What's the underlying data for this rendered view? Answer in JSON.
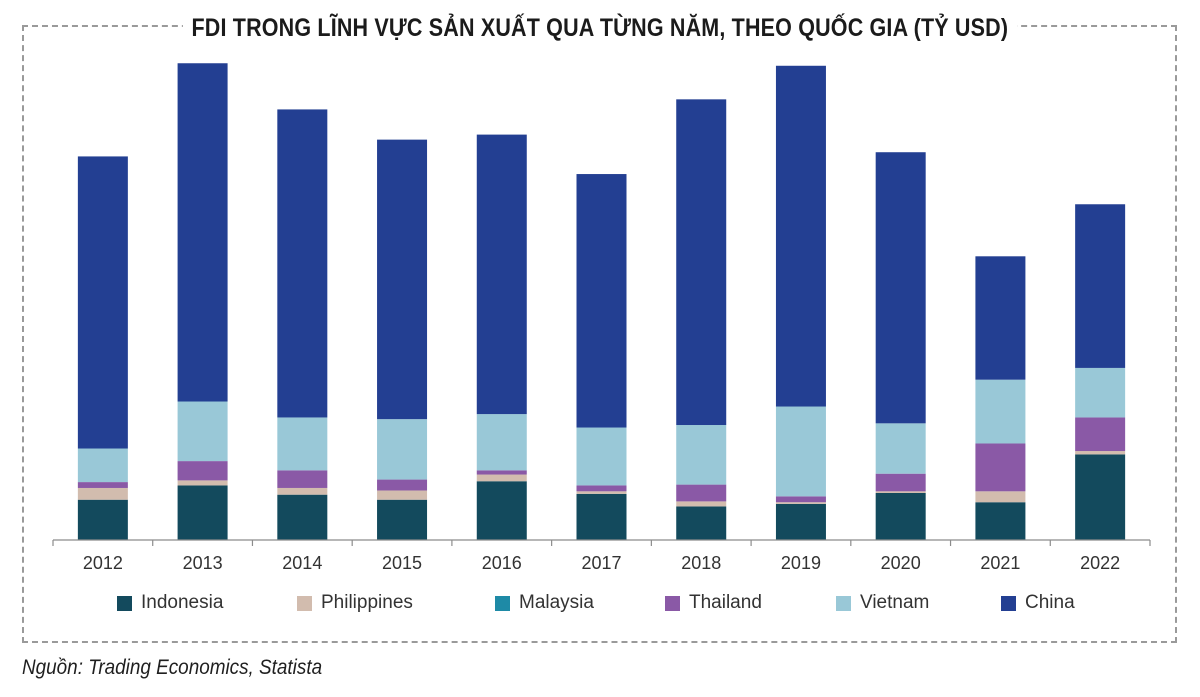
{
  "chart_data": {
    "type": "bar",
    "stacked": true,
    "title": "FDI TRONG LĨNH VỰC SẢN XUẤT QUA TỪNG NĂM, THEO QUỐC GIA (TỶ USD)",
    "xlabel": "",
    "ylabel": "",
    "categories": [
      "2012",
      "2013",
      "2014",
      "2015",
      "2016",
      "2017",
      "2018",
      "2019",
      "2020",
      "2021",
      "2022"
    ],
    "ylim": [
      0,
      61
    ],
    "grid": false,
    "legend_position": "bottom",
    "series": [
      {
        "name": "Indonesia",
        "color": "#134a5d",
        "values": [
          4.8,
          6.5,
          5.4,
          4.8,
          7.0,
          5.5,
          4.0,
          4.3,
          5.6,
          4.5,
          10.2
        ]
      },
      {
        "name": "Philippines",
        "color": "#d2bcae",
        "values": [
          1.4,
          0.6,
          0.8,
          1.1,
          0.8,
          0.3,
          0.6,
          0.2,
          0.2,
          1.3,
          0.4
        ]
      },
      {
        "name": "Malaysia",
        "color": "#1e8aa6",
        "values": [
          0.0,
          0.0,
          0.0,
          0.0,
          0.0,
          0.0,
          0.0,
          0.0,
          0.0,
          0.0,
          0.0
        ]
      },
      {
        "name": "Thailand",
        "color": "#8a59a6",
        "values": [
          0.7,
          2.3,
          2.1,
          1.3,
          0.5,
          0.7,
          2.0,
          0.7,
          2.1,
          5.7,
          4.0
        ]
      },
      {
        "name": "Vietnam",
        "color": "#99c8d7",
        "values": [
          4.0,
          7.1,
          6.3,
          7.2,
          6.7,
          6.9,
          7.1,
          10.7,
          6.0,
          7.6,
          5.9
        ]
      },
      {
        "name": "China",
        "color": "#233f92",
        "values": [
          34.8,
          40.3,
          36.7,
          33.3,
          33.3,
          30.2,
          38.8,
          40.6,
          32.3,
          14.7,
          19.5
        ]
      }
    ]
  },
  "source": "Nguồn: Trading Economics, Statista"
}
